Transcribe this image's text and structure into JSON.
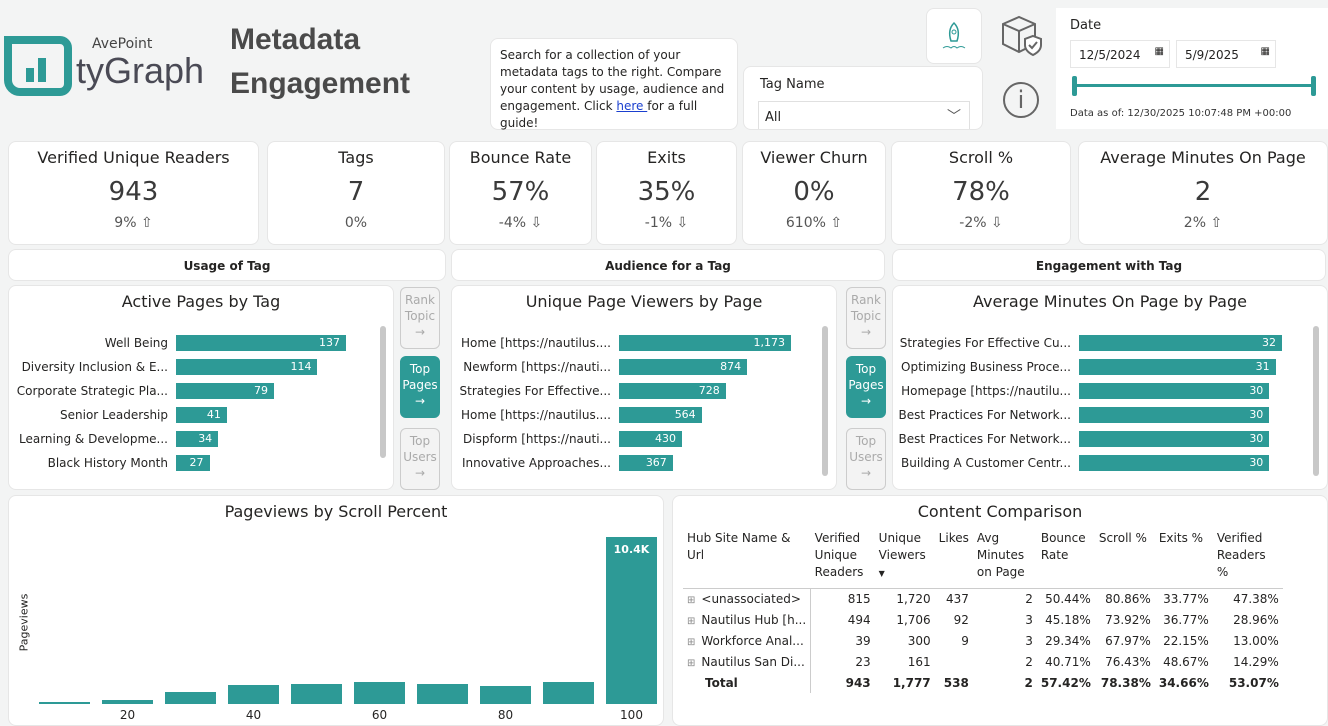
{
  "header": {
    "brand_top": "AvePoint",
    "brand": "tyGraph",
    "title_line1": "Metadata",
    "title_line2": "Engagement",
    "help_text_pre": "Search for a collection of your metadata tags to the right. Compare your content by usage, audience and engagement. Click ",
    "help_link": "here ",
    "help_text_post": "for a full guide!"
  },
  "filters": {
    "tag_label": "Tag Name",
    "tag_value": "All",
    "date_label": "Date",
    "date_start": "12/5/2024",
    "date_end": "5/9/2025",
    "data_as_of": "Data as of: 12/30/2025 10:07:48 PM +00:00"
  },
  "kpis": [
    {
      "label": "Verified Unique Readers",
      "value": "943",
      "change": "9% ⇧"
    },
    {
      "label": "Tags",
      "value": "7",
      "change": "0%"
    },
    {
      "label": "Bounce Rate",
      "value": "57%",
      "change": "-4% ⇩"
    },
    {
      "label": "Exits",
      "value": "35%",
      "change": "-1% ⇩"
    },
    {
      "label": "Viewer Churn",
      "value": "0%",
      "change": "610% ⇧"
    },
    {
      "label": "Scroll %",
      "value": "78%",
      "change": "-2% ⇩"
    },
    {
      "label": "Average Minutes On Page",
      "value": "2",
      "change": "2% ⇧"
    }
  ],
  "sections": [
    "Usage of Tag",
    "Audience for a Tag",
    "Engagement with Tag"
  ],
  "nav": {
    "rank_topic": "Rank Topic",
    "top_pages": "Top Pages",
    "top_users": "Top Users"
  },
  "accent": "#2d9a96",
  "chart_data": [
    {
      "type": "bar",
      "orientation": "horizontal",
      "title": "Active Pages by Tag",
      "categories": [
        "Well Being",
        "Diversity Inclusion & E...",
        "Corporate Strategic Pla...",
        "Senior Leadership",
        "Learning & Developme...",
        "Black History Month"
      ],
      "values": [
        137,
        114,
        79,
        41,
        34,
        27
      ],
      "labels": [
        "137",
        "114",
        "79",
        "41",
        "34",
        "27"
      ]
    },
    {
      "type": "bar",
      "orientation": "horizontal",
      "title": "Unique Page Viewers by Page",
      "categories": [
        "Home [https://nautilus....",
        "Newform [https://nauti...",
        "Strategies For Effective...",
        "Home [https://nautilus....",
        "Dispform [https://nauti...",
        "Innovative Approaches..."
      ],
      "values": [
        1173,
        874,
        728,
        564,
        430,
        367
      ],
      "labels": [
        "1,173",
        "874",
        "728",
        "564",
        "430",
        "367"
      ]
    },
    {
      "type": "bar",
      "orientation": "horizontal",
      "title": "Average Minutes On Page by Page",
      "categories": [
        "Strategies For Effective Cu...",
        "Optimizing Business Proce...",
        "Homepage [https://nautilu...",
        "Best Practices For Network...",
        "Best Practices For Network...",
        "Building A Customer Centr..."
      ],
      "values": [
        32,
        31,
        30,
        30,
        30,
        30
      ],
      "labels": [
        "32",
        "31",
        "30",
        "30",
        "30",
        "30"
      ]
    },
    {
      "type": "bar",
      "title": "Pageviews by Scroll Percent",
      "ylabel": "Pageviews",
      "x": [
        10,
        20,
        30,
        40,
        50,
        60,
        70,
        80,
        90,
        100
      ],
      "values": [
        100,
        250,
        750,
        1200,
        1250,
        1350,
        1250,
        1100,
        1350,
        10400
      ],
      "tick_labels": [
        "20",
        "40",
        "60",
        "80",
        "100"
      ],
      "top_label": "10.4K"
    }
  ],
  "table": {
    "title": "Content Comparison",
    "columns": [
      "Hub Site Name & Url",
      "Verified Unique Readers",
      "Unique Viewers",
      "Likes",
      "Avg Minutes on Page",
      "Bounce Rate",
      "Scroll %",
      "Exits %",
      "Verified Readers %"
    ],
    "rows": [
      [
        "<unassociated>",
        "815",
        "1,720",
        "437",
        "2",
        "50.44%",
        "80.86%",
        "33.77%",
        "47.38%"
      ],
      [
        "Nautilus Hub [h...",
        "494",
        "1,706",
        "92",
        "3",
        "45.18%",
        "73.92%",
        "36.77%",
        "28.96%"
      ],
      [
        "Workforce Anal...",
        "39",
        "300",
        "9",
        "3",
        "29.34%",
        "67.97%",
        "22.15%",
        "13.00%"
      ],
      [
        "Nautilus San Di...",
        "23",
        "161",
        "",
        "2",
        "40.71%",
        "76.43%",
        "48.67%",
        "14.29%"
      ]
    ],
    "total": [
      "Total",
      "943",
      "1,777",
      "538",
      "2",
      "57.42%",
      "78.38%",
      "34.66%",
      "53.07%"
    ]
  }
}
